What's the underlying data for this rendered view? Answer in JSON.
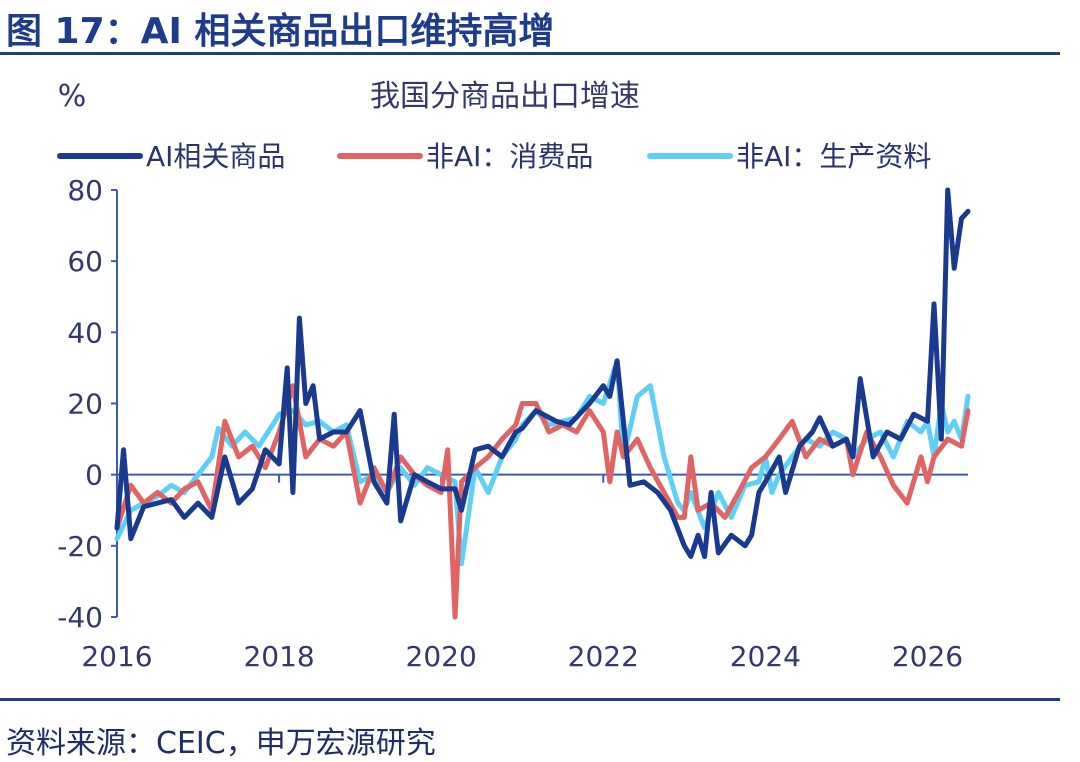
{
  "figure_title": "图 17：AI 相关商品出口维持高增",
  "source": "资料来源：CEIC，申万宏源研究",
  "chart_data": {
    "type": "line",
    "title": "我国分商品出口增速",
    "ylabel": "%",
    "xlabel": "",
    "ylim": [
      -40,
      80
    ],
    "yticks": [
      80,
      60,
      40,
      20,
      0,
      -20,
      -40
    ],
    "xticks": [
      "2016",
      "2018",
      "2020",
      "2022",
      "2024",
      "2026"
    ],
    "xlim": [
      2016.0,
      2026.5
    ],
    "legend": "top",
    "series": [
      {
        "name": "AI相关商品",
        "color": "#1a3a8f",
        "points": [
          [
            2016.0,
            -15
          ],
          [
            2016.08,
            7
          ],
          [
            2016.17,
            -18
          ],
          [
            2016.33,
            -9
          ],
          [
            2016.5,
            -8
          ],
          [
            2016.67,
            -7
          ],
          [
            2016.83,
            -12
          ],
          [
            2017.0,
            -8
          ],
          [
            2017.17,
            -12
          ],
          [
            2017.33,
            5
          ],
          [
            2017.5,
            -8
          ],
          [
            2017.67,
            -4
          ],
          [
            2017.83,
            7
          ],
          [
            2018.0,
            3
          ],
          [
            2018.1,
            30
          ],
          [
            2018.17,
            -5
          ],
          [
            2018.25,
            44
          ],
          [
            2018.33,
            20
          ],
          [
            2018.42,
            25
          ],
          [
            2018.5,
            10
          ],
          [
            2018.67,
            12
          ],
          [
            2018.83,
            12
          ],
          [
            2019.0,
            18
          ],
          [
            2019.17,
            -2
          ],
          [
            2019.33,
            -8
          ],
          [
            2019.42,
            17
          ],
          [
            2019.5,
            -13
          ],
          [
            2019.67,
            0
          ],
          [
            2019.83,
            -2
          ],
          [
            2020.0,
            -4
          ],
          [
            2020.17,
            -4
          ],
          [
            2020.25,
            -10
          ],
          [
            2020.42,
            7
          ],
          [
            2020.58,
            8
          ],
          [
            2020.75,
            5
          ],
          [
            2020.92,
            12
          ],
          [
            2021.0,
            13
          ],
          [
            2021.17,
            18
          ],
          [
            2021.42,
            15
          ],
          [
            2021.58,
            14
          ],
          [
            2021.83,
            20
          ],
          [
            2022.0,
            25
          ],
          [
            2022.08,
            22
          ],
          [
            2022.17,
            32
          ],
          [
            2022.33,
            -3
          ],
          [
            2022.5,
            -2
          ],
          [
            2022.67,
            -5
          ],
          [
            2022.83,
            -10
          ],
          [
            2023.0,
            -20
          ],
          [
            2023.08,
            -23
          ],
          [
            2023.17,
            -17
          ],
          [
            2023.25,
            -23
          ],
          [
            2023.33,
            -5
          ],
          [
            2023.42,
            -22
          ],
          [
            2023.58,
            -17
          ],
          [
            2023.75,
            -20
          ],
          [
            2023.83,
            -17
          ],
          [
            2023.92,
            -5
          ],
          [
            2024.0,
            -2
          ],
          [
            2024.17,
            5
          ],
          [
            2024.25,
            -5
          ],
          [
            2024.42,
            8
          ],
          [
            2024.58,
            12
          ],
          [
            2024.67,
            16
          ],
          [
            2024.83,
            8
          ],
          [
            2025.0,
            10
          ],
          [
            2025.08,
            5
          ],
          [
            2025.17,
            27
          ],
          [
            2025.33,
            5
          ],
          [
            2025.5,
            12
          ],
          [
            2025.67,
            10
          ],
          [
            2025.83,
            17
          ],
          [
            2026.0,
            15
          ],
          [
            2026.08,
            48
          ],
          [
            2026.17,
            10
          ],
          [
            2026.25,
            80
          ],
          [
            2026.33,
            58
          ],
          [
            2026.42,
            72
          ],
          [
            2026.5,
            74
          ]
        ]
      },
      {
        "name": "非AI：消费品",
        "color": "#e06464",
        "points": [
          [
            2016.0,
            -15
          ],
          [
            2016.17,
            -3
          ],
          [
            2016.33,
            -8
          ],
          [
            2016.5,
            -5
          ],
          [
            2016.67,
            -8
          ],
          [
            2016.83,
            -4
          ],
          [
            2017.0,
            -2
          ],
          [
            2017.17,
            -10
          ],
          [
            2017.33,
            15
          ],
          [
            2017.5,
            5
          ],
          [
            2017.67,
            8
          ],
          [
            2017.83,
            2
          ],
          [
            2018.0,
            12
          ],
          [
            2018.17,
            25
          ],
          [
            2018.33,
            5
          ],
          [
            2018.5,
            10
          ],
          [
            2018.67,
            8
          ],
          [
            2018.83,
            12
          ],
          [
            2019.0,
            -8
          ],
          [
            2019.17,
            2
          ],
          [
            2019.33,
            -5
          ],
          [
            2019.5,
            5
          ],
          [
            2019.67,
            0
          ],
          [
            2019.83,
            -3
          ],
          [
            2020.0,
            -5
          ],
          [
            2020.08,
            7
          ],
          [
            2020.17,
            -40
          ],
          [
            2020.25,
            -2
          ],
          [
            2020.42,
            2
          ],
          [
            2020.58,
            5
          ],
          [
            2020.75,
            10
          ],
          [
            2020.92,
            14
          ],
          [
            2021.0,
            20
          ],
          [
            2021.17,
            20
          ],
          [
            2021.33,
            12
          ],
          [
            2021.5,
            14
          ],
          [
            2021.67,
            12
          ],
          [
            2021.83,
            18
          ],
          [
            2022.0,
            12
          ],
          [
            2022.08,
            -2
          ],
          [
            2022.17,
            12
          ],
          [
            2022.25,
            5
          ],
          [
            2022.42,
            10
          ],
          [
            2022.58,
            2
          ],
          [
            2022.75,
            -5
          ],
          [
            2022.92,
            -12
          ],
          [
            2023.0,
            -12
          ],
          [
            2023.08,
            5
          ],
          [
            2023.17,
            -10
          ],
          [
            2023.33,
            -8
          ],
          [
            2023.5,
            -12
          ],
          [
            2023.67,
            -5
          ],
          [
            2023.83,
            2
          ],
          [
            2024.0,
            5
          ],
          [
            2024.17,
            10
          ],
          [
            2024.33,
            15
          ],
          [
            2024.5,
            5
          ],
          [
            2024.67,
            10
          ],
          [
            2024.83,
            8
          ],
          [
            2025.0,
            10
          ],
          [
            2025.08,
            0
          ],
          [
            2025.25,
            12
          ],
          [
            2025.42,
            5
          ],
          [
            2025.58,
            -3
          ],
          [
            2025.75,
            -8
          ],
          [
            2025.92,
            5
          ],
          [
            2026.0,
            -2
          ],
          [
            2026.08,
            5
          ],
          [
            2026.25,
            10
          ],
          [
            2026.42,
            8
          ],
          [
            2026.5,
            18
          ]
        ]
      },
      {
        "name": "非AI：生产资料",
        "color": "#5fd0f5",
        "points": [
          [
            2016.0,
            -18
          ],
          [
            2016.17,
            -10
          ],
          [
            2016.33,
            -8
          ],
          [
            2016.5,
            -6
          ],
          [
            2016.67,
            -3
          ],
          [
            2016.83,
            -5
          ],
          [
            2017.0,
            0
          ],
          [
            2017.17,
            5
          ],
          [
            2017.25,
            13
          ],
          [
            2017.42,
            8
          ],
          [
            2017.58,
            12
          ],
          [
            2017.75,
            8
          ],
          [
            2017.92,
            14
          ],
          [
            2018.0,
            17
          ],
          [
            2018.17,
            18
          ],
          [
            2018.33,
            14
          ],
          [
            2018.5,
            15
          ],
          [
            2018.67,
            12
          ],
          [
            2018.83,
            14
          ],
          [
            2019.0,
            -2
          ],
          [
            2019.17,
            0
          ],
          [
            2019.33,
            -5
          ],
          [
            2019.5,
            2
          ],
          [
            2019.67,
            -3
          ],
          [
            2019.83,
            2
          ],
          [
            2020.0,
            0
          ],
          [
            2020.17,
            -2
          ],
          [
            2020.25,
            -25
          ],
          [
            2020.42,
            2
          ],
          [
            2020.58,
            -5
          ],
          [
            2020.75,
            5
          ],
          [
            2020.92,
            10
          ],
          [
            2021.0,
            14
          ],
          [
            2021.17,
            18
          ],
          [
            2021.33,
            14
          ],
          [
            2021.5,
            15
          ],
          [
            2021.67,
            16
          ],
          [
            2021.83,
            22
          ],
          [
            2022.0,
            20
          ],
          [
            2022.17,
            32
          ],
          [
            2022.25,
            5
          ],
          [
            2022.42,
            22
          ],
          [
            2022.58,
            25
          ],
          [
            2022.75,
            5
          ],
          [
            2022.92,
            -8
          ],
          [
            2023.0,
            -10
          ],
          [
            2023.08,
            -5
          ],
          [
            2023.25,
            -15
          ],
          [
            2023.42,
            -5
          ],
          [
            2023.58,
            -12
          ],
          [
            2023.75,
            -3
          ],
          [
            2023.92,
            -2
          ],
          [
            2024.0,
            5
          ],
          [
            2024.08,
            -5
          ],
          [
            2024.17,
            0
          ],
          [
            2024.33,
            5
          ],
          [
            2024.5,
            10
          ],
          [
            2024.67,
            8
          ],
          [
            2024.83,
            12
          ],
          [
            2025.0,
            10
          ],
          [
            2025.08,
            5
          ],
          [
            2025.25,
            10
          ],
          [
            2025.42,
            12
          ],
          [
            2025.58,
            5
          ],
          [
            2025.75,
            15
          ],
          [
            2025.92,
            12
          ],
          [
            2026.0,
            15
          ],
          [
            2026.08,
            5
          ],
          [
            2026.17,
            20
          ],
          [
            2026.25,
            12
          ],
          [
            2026.33,
            15
          ],
          [
            2026.42,
            10
          ],
          [
            2026.5,
            22
          ]
        ]
      }
    ]
  }
}
